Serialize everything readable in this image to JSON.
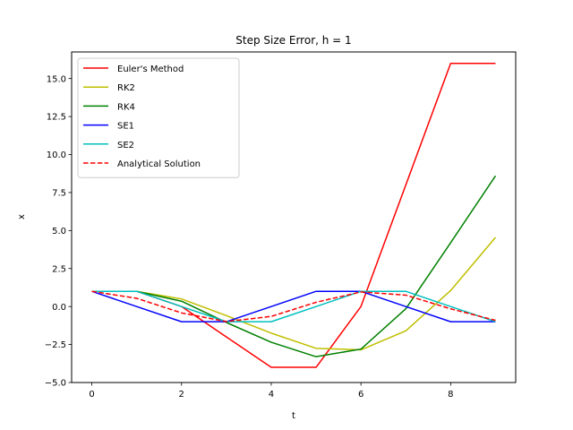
{
  "chart_data": {
    "type": "line",
    "title": "Step Size Error, h = 1",
    "xlabel": "t",
    "ylabel": "x",
    "xlim": [
      -0.45,
      9.45
    ],
    "ylim": [
      -5.0,
      16.75
    ],
    "xticks": [
      "0",
      "2",
      "4",
      "6",
      "8"
    ],
    "xtick_values": [
      0,
      2,
      4,
      6,
      8
    ],
    "yticks": [
      "−5.0",
      "−2.5",
      "0.0",
      "2.5",
      "5.0",
      "7.5",
      "10.0",
      "12.5",
      "15.0"
    ],
    "ytick_values": [
      -5.0,
      -2.5,
      0.0,
      2.5,
      5.0,
      7.5,
      10.0,
      12.5,
      15.0
    ],
    "grid": false,
    "legend_position": "top-left",
    "x": [
      0,
      1,
      2,
      3,
      4,
      5,
      6,
      7,
      8,
      9
    ],
    "series": [
      {
        "name": "Euler's Method",
        "color": "#ff0000",
        "dash": "solid",
        "values": [
          1,
          1,
          0,
          -2,
          -4,
          -4,
          0,
          8,
          16,
          16
        ]
      },
      {
        "name": "RK2",
        "color": "#bfbf00",
        "dash": "solid",
        "values": [
          1,
          1,
          0.5,
          -0.6,
          -1.75,
          -2.75,
          -2.85,
          -1.6,
          1.05,
          4.55
        ]
      },
      {
        "name": "RK4",
        "color": "#008000",
        "dash": "solid",
        "values": [
          1,
          1,
          0.35,
          -1.05,
          -2.35,
          -3.3,
          -2.8,
          -0.15,
          4.2,
          8.6
        ]
      },
      {
        "name": "SE1",
        "color": "#0000ff",
        "dash": "solid",
        "values": [
          1,
          0,
          -1,
          -1,
          0,
          1,
          1,
          0,
          -1,
          -1
        ]
      },
      {
        "name": "SE2",
        "color": "#00bfbf",
        "dash": "solid",
        "values": [
          1,
          1,
          0,
          -1,
          -1,
          0,
          1,
          1,
          0,
          -1
        ]
      },
      {
        "name": "Analytical Solution",
        "color": "#ff0000",
        "dash": "dashed",
        "values": [
          1,
          0.54,
          -0.42,
          -0.99,
          -0.65,
          0.28,
          0.96,
          0.75,
          -0.15,
          -0.91
        ]
      }
    ]
  }
}
